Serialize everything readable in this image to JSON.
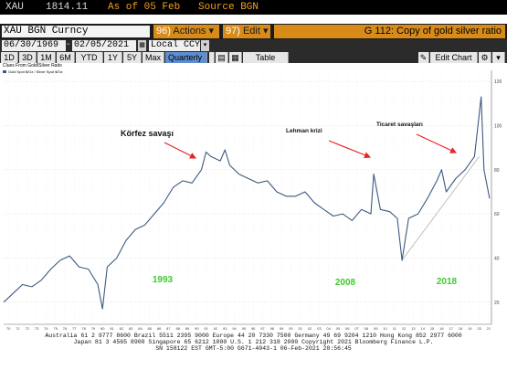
{
  "header": {
    "symbol": "XAU",
    "price": "1814.11",
    "as_of": "As of 05 Feb",
    "source": "Source BGN"
  },
  "toolbar": {
    "ticker": "XAU BGN Curncy",
    "actions_label": "Actions",
    "actions_num": "96)",
    "edit_label": "Edit",
    "edit_num": "97)",
    "chart_title": "G 112: Copy of gold silver ratio"
  },
  "controls": {
    "start_date": "06/30/1969",
    "end_date": "02/05/2021",
    "currency": "Local CCY",
    "periods": [
      "1D",
      "3D",
      "1M",
      "6M",
      "YTD",
      "1Y",
      "5Y",
      "Max"
    ],
    "frequency": "Quarterly",
    "table_label": "Table",
    "edit_chart_label": "Edit Chart"
  },
  "chart_data": {
    "type": "line",
    "title": "Clues From Gold/Silver Ratio",
    "legend": "Gold Spot $/Oz / Silver Spot $/Oz",
    "ylim": [
      10,
      125
    ],
    "ytick_labels": [
      "120",
      "100",
      "80",
      "60",
      "40",
      "20"
    ],
    "x_tick_labels": [
      "70",
      "71",
      "72",
      "73",
      "74",
      "75",
      "76",
      "77",
      "78",
      "79",
      "80",
      "81",
      "82",
      "83",
      "84",
      "85",
      "86",
      "87",
      "88",
      "89",
      "90",
      "91",
      "92",
      "93",
      "94",
      "95",
      "96",
      "97",
      "98",
      "99",
      "00",
      "01",
      "02",
      "03",
      "04",
      "05",
      "06",
      "07",
      "08",
      "09",
      "10",
      "11",
      "12",
      "13",
      "14",
      "15",
      "16",
      "17",
      "18",
      "19",
      "20",
      "21"
    ],
    "series": [
      {
        "name": "Gold Spot $/Oz / Silver Spot $/Oz",
        "x": [
          1969.5,
          1970.5,
          1971.5,
          1972.5,
          1973.5,
          1974.5,
          1975.5,
          1976.5,
          1977.5,
          1978.5,
          1979.5,
          1980.0,
          1980.5,
          1981.5,
          1982.5,
          1983.5,
          1984.5,
          1985.5,
          1986.5,
          1987.5,
          1988.5,
          1989.5,
          1990.5,
          1991.0,
          1991.5,
          1992.5,
          1993.0,
          1993.5,
          1994.5,
          1995.5,
          1996.5,
          1997.5,
          1998.5,
          1999.5,
          2000.5,
          2001.5,
          2002.5,
          2003.5,
          2004.5,
          2005.5,
          2006.5,
          2007.5,
          2008.5,
          2008.8,
          2009.5,
          2010.5,
          2011.3,
          2011.8,
          2012.5,
          2013.5,
          2014.5,
          2015.5,
          2016.0,
          2016.5,
          2017.5,
          2018.5,
          2019.5,
          2020.2,
          2020.5,
          2021.1
        ],
        "values": [
          20,
          24,
          28,
          27,
          30,
          35,
          39,
          41,
          36,
          35,
          28,
          17,
          36,
          40,
          48,
          53,
          55,
          60,
          65,
          72,
          75,
          74,
          80,
          88,
          86,
          84,
          89,
          82,
          78,
          76,
          74,
          75,
          70,
          68,
          68,
          70,
          65,
          62,
          59,
          60,
          57,
          62,
          60,
          78,
          62,
          61,
          58,
          39,
          58,
          60,
          67,
          75,
          80,
          70,
          76,
          80,
          86,
          113,
          80,
          67
        ]
      }
    ],
    "annotations": [
      {
        "text": "Körfez savaşı",
        "x": 1991
      },
      {
        "text": "Lehman krizi",
        "x": 2008.8
      },
      {
        "text": "Ticaret savaşları",
        "x": 2019.6
      }
    ],
    "year_labels": [
      {
        "text": "1993",
        "x": 1993
      },
      {
        "text": "2008",
        "x": 2008
      },
      {
        "text": "2018",
        "x": 2018
      }
    ],
    "trendline": {
      "from": {
        "x": 2011.8,
        "y": 39
      },
      "to": {
        "x": 2020.0,
        "y": 86
      }
    },
    "colors": {
      "line": "#3b5a80",
      "annotation_arrow": "#e8232a",
      "year_label": "#3ecb2c",
      "trendline": "#b0b0b0"
    }
  },
  "footer": {
    "line1": "Australia 61 2 9777 8600 Brazil 5511 2395 9000 Europe 44 20 7330 7500 Germany 49 69 9204 1210 Hong Kong 852 2977 6000",
    "line2": "Japan 81 3 4565 8900          Singapore 65 6212 1000          U.S. 1 212 318 2000          Copyright 2021 Bloomberg Finance L.P.",
    "line3": "SN 158122 EST  GMT-5:00 G671-4043-1 06-Feb-2021 20:56:45"
  }
}
